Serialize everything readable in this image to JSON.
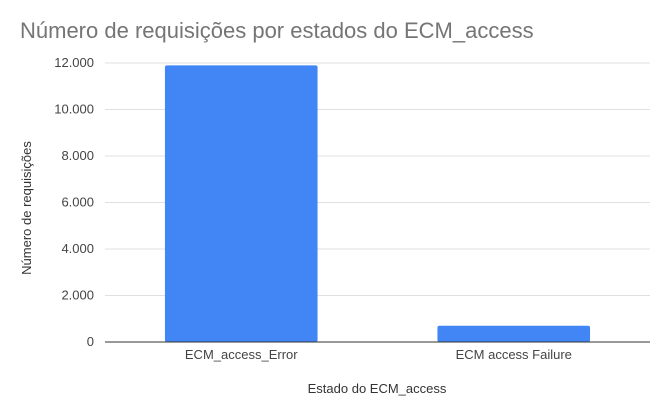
{
  "chart_data": {
    "type": "bar",
    "title": "Número de requisições por estados do ECM_access",
    "xlabel": "Estado do ECM_access",
    "ylabel": "Número de requisições",
    "categories": [
      "ECM_access_Error",
      "ECM access Failure"
    ],
    "values": [
      11900,
      700
    ],
    "ylim": [
      0,
      12000
    ],
    "yticks": [
      0,
      2000,
      4000,
      6000,
      8000,
      10000,
      12000
    ],
    "ytick_labels": [
      "0",
      "2.000",
      "4.000",
      "6.000",
      "8.000",
      "10.000",
      "12.000"
    ],
    "grid": true,
    "legend": "none",
    "colors": {
      "bar": "#4285f4",
      "title": "#757575",
      "text": "#444444",
      "grid": "#e0e0e0",
      "axis": "#333333"
    }
  }
}
